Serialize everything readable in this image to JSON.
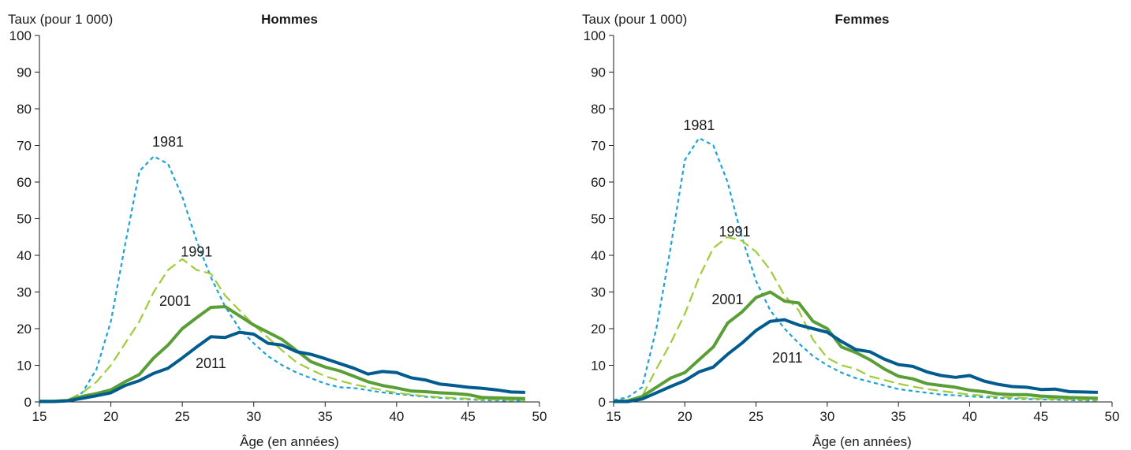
{
  "chart_data": [
    {
      "type": "line",
      "title": "Hommes",
      "ylabel": "Taux (pour 1 000)",
      "xlabel": "Âge (en années)",
      "xlim": [
        15,
        50
      ],
      "ylim": [
        0,
        100
      ],
      "xticks": [
        15,
        20,
        25,
        30,
        35,
        40,
        45,
        50
      ],
      "yticks": [
        0,
        10,
        20,
        30,
        40,
        50,
        60,
        70,
        80,
        90,
        100
      ],
      "grid": false,
      "legend": "inline labels",
      "x": [
        15,
        16,
        17,
        18,
        19,
        20,
        21,
        22,
        23,
        24,
        25,
        26,
        27,
        28,
        29,
        30,
        31,
        32,
        33,
        34,
        35,
        36,
        37,
        38,
        39,
        40,
        41,
        42,
        43,
        44,
        45,
        46,
        47,
        48,
        49
      ],
      "series": [
        {
          "name": "1981",
          "color": "#1aa3d9",
          "style": "dotted",
          "values": [
            0.2,
            0.3,
            0.5,
            2.5,
            9,
            22,
            43,
            63,
            67,
            65,
            56,
            44,
            34,
            26,
            20,
            16,
            12.5,
            10,
            8,
            6.5,
            5,
            4,
            3.8,
            3.2,
            2.6,
            2.2,
            1.8,
            1.4,
            1.1,
            0.9,
            0.7,
            0.5,
            0.4,
            0.3,
            0.3
          ],
          "label_at": [
            24,
            71
          ]
        },
        {
          "name": "1991",
          "color": "#9fcc3b",
          "style": "dashed",
          "values": [
            0.2,
            0.3,
            0.6,
            2.5,
            5.5,
            10,
            16,
            22,
            30,
            36,
            39,
            36,
            35,
            29,
            25,
            21,
            17.5,
            14,
            10.8,
            8.8,
            7,
            5.8,
            4.8,
            4,
            3.2,
            2.5,
            2,
            1.6,
            1.3,
            1.1,
            0.9,
            0.7,
            0.6,
            0.5,
            0.4
          ],
          "label_at": [
            26,
            41
          ]
        },
        {
          "name": "2001",
          "color": "#5a9e37",
          "style": "solid",
          "values": [
            0.2,
            0.2,
            0.4,
            1.5,
            2.3,
            3.3,
            5.5,
            7.5,
            12,
            15.5,
            20,
            23,
            25.8,
            26,
            23.5,
            21,
            19,
            17,
            14,
            11,
            9.5,
            8.5,
            7,
            5.5,
            4.5,
            3.8,
            3,
            2.8,
            2.5,
            2.3,
            2,
            1.2,
            1.1,
            1,
            0.9
          ],
          "label_at": [
            24.5,
            27.5
          ]
        },
        {
          "name": "2011",
          "color": "#005b8f",
          "style": "solid",
          "values": [
            0.1,
            0.1,
            0.3,
            1,
            1.7,
            2.5,
            4.5,
            5.8,
            7.8,
            9.2,
            12,
            15,
            17.8,
            17.6,
            19,
            18.5,
            16,
            15.5,
            13.7,
            13,
            11.8,
            10.5,
            9.2,
            7.6,
            8.3,
            8,
            6.6,
            6,
            4.9,
            4.5,
            4,
            3.7,
            3.3,
            2.7,
            2.6
          ],
          "label_at": [
            27,
            10.5
          ]
        }
      ]
    },
    {
      "type": "line",
      "title": "Femmes",
      "ylabel": "Taux (pour 1 000)",
      "xlabel": "Âge (en années)",
      "xlim": [
        15,
        50
      ],
      "ylim": [
        0,
        100
      ],
      "xticks": [
        15,
        20,
        25,
        30,
        35,
        40,
        45,
        50
      ],
      "yticks": [
        0,
        10,
        20,
        30,
        40,
        50,
        60,
        70,
        80,
        90,
        100
      ],
      "grid": false,
      "legend": "inline labels",
      "x": [
        15,
        16,
        17,
        18,
        19,
        20,
        21,
        22,
        23,
        24,
        25,
        26,
        27,
        28,
        29,
        30,
        31,
        32,
        33,
        34,
        35,
        36,
        37,
        38,
        39,
        40,
        41,
        42,
        43,
        44,
        45,
        46,
        47,
        48,
        49
      ],
      "series": [
        {
          "name": "1981",
          "color": "#1aa3d9",
          "style": "dotted",
          "values": [
            0.5,
            1.3,
            4,
            20,
            42,
            66,
            72,
            70,
            60,
            45,
            33,
            25,
            20,
            16,
            12.5,
            10,
            8,
            6.5,
            5.5,
            4.5,
            3.5,
            3,
            2.5,
            2,
            1.8,
            1.5,
            1.3,
            1.1,
            0.9,
            0.8,
            0.7,
            0.6,
            0.5,
            0.4,
            0.4
          ],
          "label_at": [
            21,
            75.5
          ]
        },
        {
          "name": "1991",
          "color": "#9fcc3b",
          "style": "dashed",
          "values": [
            0.3,
            0.5,
            1.5,
            9,
            16,
            24,
            34,
            42,
            45,
            44,
            41,
            36,
            29,
            25,
            17,
            12,
            10,
            9,
            7,
            6,
            5,
            4.2,
            3.5,
            3,
            2.5,
            2,
            1.7,
            1.4,
            1.2,
            1,
            0.9,
            0.8,
            0.7,
            0.6,
            0.5
          ],
          "label_at": [
            23.5,
            46.5
          ]
        },
        {
          "name": "2001",
          "color": "#5a9e37",
          "style": "solid",
          "values": [
            0.2,
            0.3,
            1.5,
            4,
            6.5,
            8,
            11.5,
            15,
            21.5,
            24.5,
            28.5,
            30,
            27.5,
            27,
            22,
            20,
            15,
            13.5,
            11.5,
            9,
            7,
            6.3,
            5,
            4.5,
            4,
            3.2,
            2.8,
            2.2,
            2,
            2,
            1.6,
            1.4,
            1.2,
            1.1,
            1
          ],
          "label_at": [
            23,
            28
          ]
        },
        {
          "name": "2011",
          "color": "#005b8f",
          "style": "solid",
          "values": [
            0.1,
            0.1,
            0.8,
            2.5,
            4.2,
            5.8,
            8.2,
            9.5,
            13,
            16,
            19.5,
            22,
            22.4,
            21,
            20,
            19,
            16.5,
            14.3,
            13.7,
            11.7,
            10.2,
            9.7,
            8.2,
            7.2,
            6.7,
            7.2,
            5.7,
            4.8,
            4.2,
            4,
            3.4,
            3.5,
            2.8,
            2.7,
            2.6
          ],
          "label_at": [
            27.2,
            12
          ]
        }
      ]
    }
  ]
}
